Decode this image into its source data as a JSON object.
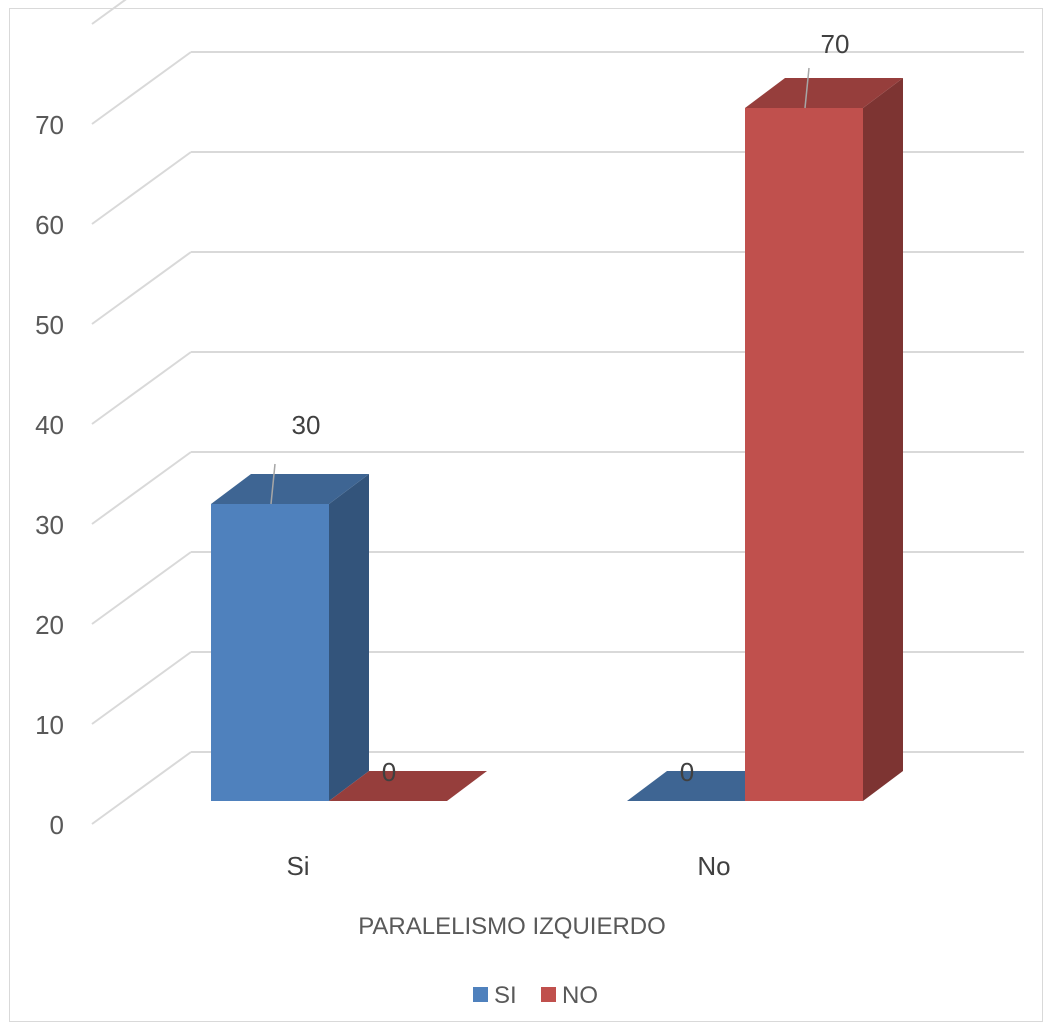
{
  "chart_data": {
    "type": "bar",
    "categories": [
      "Si",
      "No"
    ],
    "series": [
      {
        "name": "SI",
        "values": [
          30,
          0
        ],
        "color": "#4f81bd"
      },
      {
        "name": "NO",
        "values": [
          0,
          70
        ],
        "color": "#c0504d"
      }
    ],
    "xlabel": "PARALELISMO IZQUIERDO",
    "ylabel": "",
    "ylim": [
      0,
      70
    ],
    "yticks": [
      0,
      10,
      20,
      30,
      40,
      50,
      60,
      70
    ],
    "grid": true,
    "legend_position": "bottom",
    "style": "3d-clustered-column"
  }
}
